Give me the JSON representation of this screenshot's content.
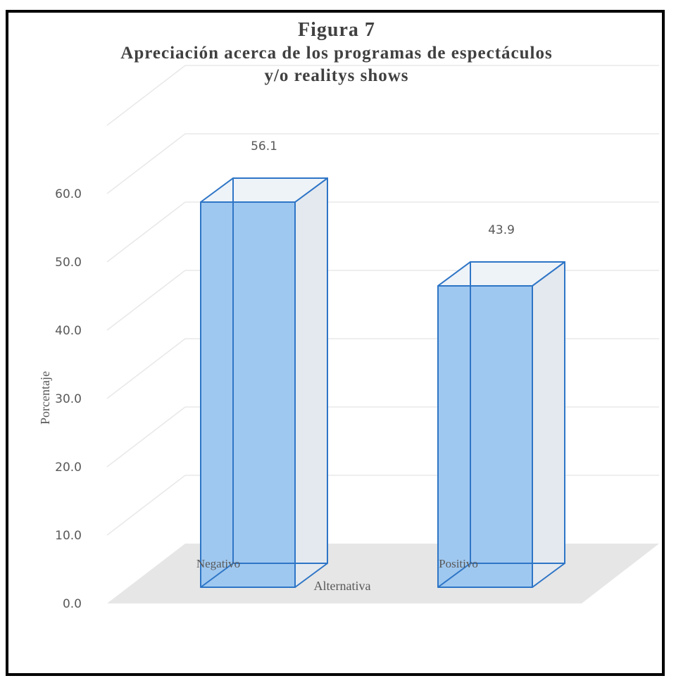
{
  "chart_data": {
    "type": "bar",
    "title": "Figura 7",
    "subtitle_lines": [
      "Apreciación acerca de los programas de espectáculos",
      "y/o realitys shows"
    ],
    "xlabel": "Alternativa",
    "ylabel": "Porcentaje",
    "categories": [
      "Negativo",
      "Positivo"
    ],
    "values": [
      56.1,
      43.9
    ],
    "value_labels": [
      "56.1",
      "43.9"
    ],
    "ylim": [
      0,
      60
    ],
    "yticks": [
      "0.0",
      "10.0",
      "20.0",
      "30.0",
      "40.0",
      "50.0",
      "60.0"
    ],
    "grid": true,
    "legend": "none",
    "style": "3d-column"
  },
  "colors": {
    "bar_fill": "#9fc8f0",
    "bar_edge": "#2e75c6",
    "gridline": "#e8e8e8",
    "floor": "#e6e6e6",
    "text": "#595959",
    "title": "#404040"
  }
}
